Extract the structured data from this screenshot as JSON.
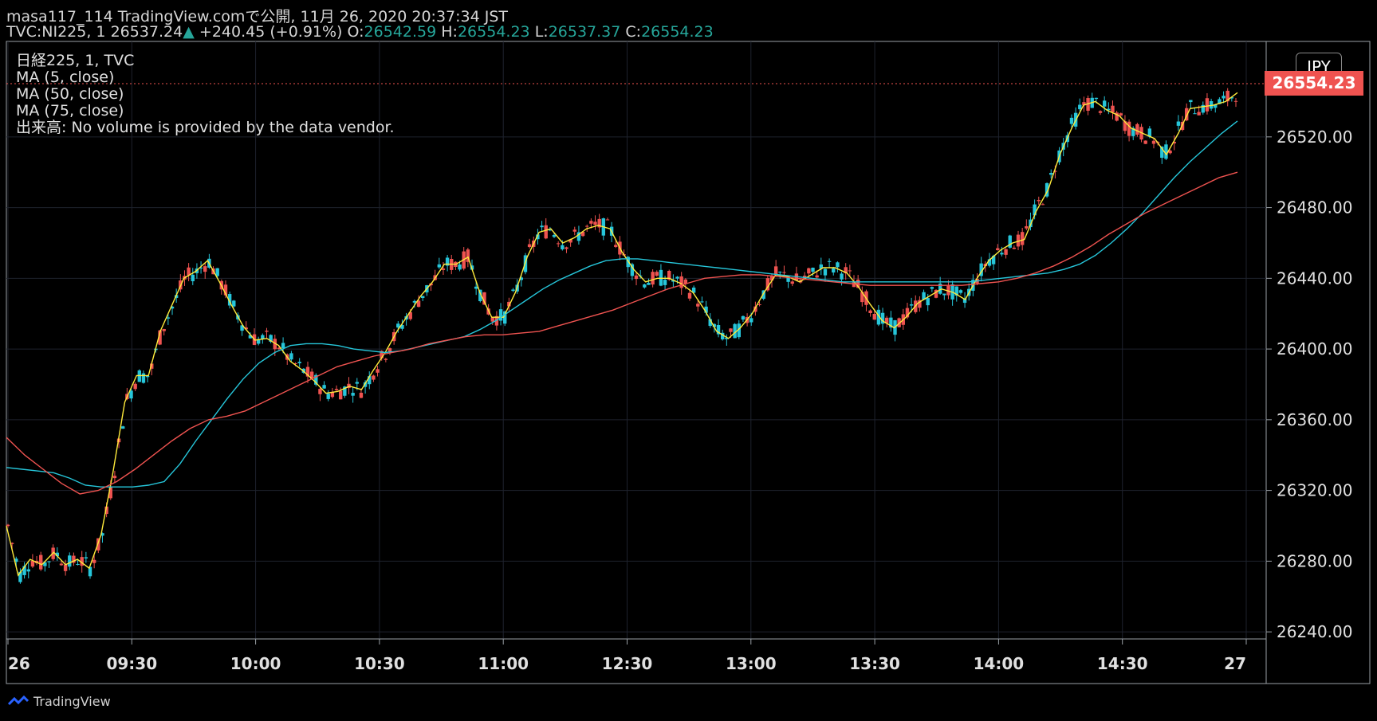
{
  "header": {
    "line1": "masa117_114 TradingView.comで公開, 11月 26, 2020 20:37:34 JST",
    "symbol": "TVC:NI225, 1",
    "last": "26537.24",
    "change": "+240.45 (+0.91%)",
    "o_label": "O:",
    "o_val": "26542.59",
    "h_label": "H:",
    "h_val": "26554.23",
    "l_label": "L:",
    "l_val": "26537.37",
    "c_label": "C:",
    "c_val": "26554.23"
  },
  "legend": {
    "title": "日経225, 1, TVC",
    "ma5": "MA (5, close)",
    "ma50": "MA (50, close)",
    "ma75": "MA (75, close)",
    "volume_note": "出来高: No volume is provided by the data vendor."
  },
  "currency": "JPY",
  "last_price_tag": "26554.23",
  "footer": {
    "brand": "TradingView"
  },
  "colors": {
    "up": "#ef5350",
    "down": "#26c6da",
    "ma5": "#ffeb3b",
    "ma50": "#26c6da",
    "ma75": "#ef5350",
    "grid": "#1e222d"
  },
  "chart_data": {
    "type": "line",
    "y_ticks": [
      "26240.00",
      "26280.00",
      "26320.00",
      "26360.00",
      "26400.00",
      "26440.00",
      "26480.00",
      "26520.00"
    ],
    "x_ticks": [
      "26",
      "09:30",
      "10:00",
      "10:30",
      "11:00",
      "12:30",
      "13:00",
      "13:30",
      "14:00",
      "14:30",
      "27"
    ],
    "ylim": [
      26236,
      26574
    ],
    "series": [
      {
        "name": "MA (5, close)",
        "color": "#ffeb3b",
        "values": [
          26300,
          26272,
          26281,
          26278,
          26285,
          26278,
          26281,
          26276,
          26295,
          26330,
          26370,
          26385,
          26385,
          26410,
          26425,
          26440,
          26444,
          26450,
          26438,
          26425,
          26413,
          26405,
          26406,
          26402,
          26393,
          26388,
          26382,
          26375,
          26376,
          26379,
          26377,
          26388,
          26398,
          26410,
          26420,
          26430,
          26438,
          26448,
          26448,
          26452,
          26432,
          26418,
          26418,
          26432,
          26452,
          26466,
          26468,
          26460,
          26463,
          26468,
          26470,
          26468,
          26455,
          26445,
          26438,
          26440,
          26440,
          26437,
          26432,
          26422,
          26410,
          26406,
          26412,
          26420,
          26432,
          26442,
          26441,
          26438,
          26442,
          26446,
          26446,
          26443,
          26435,
          26425,
          26416,
          26412,
          26418,
          26426,
          26430,
          26434,
          26432,
          26428,
          26440,
          26450,
          26456,
          26460,
          26462,
          26478,
          26490,
          26510,
          26525,
          26538,
          26540,
          26535,
          26532,
          26525,
          26522,
          26519,
          26510,
          26522,
          26536,
          26537,
          26538,
          26540,
          26545
        ]
      },
      {
        "name": "MA (50, close)",
        "color": "#26c6da",
        "values": [
          26333,
          26332,
          26331,
          26330,
          26327,
          26323,
          26322,
          26322,
          26322,
          26323,
          26325,
          26335,
          26348,
          26360,
          26372,
          26383,
          26392,
          26398,
          26402,
          26403,
          26403,
          26402,
          26400,
          26399,
          26398,
          26399,
          26401,
          26403,
          26405,
          26407,
          26411,
          26416,
          26422,
          26428,
          26434,
          26439,
          26443,
          26447,
          26450,
          26451,
          26451,
          26450,
          26449,
          26448,
          26447,
          26446,
          26445,
          26444,
          26443,
          26442,
          26441,
          26440,
          26439,
          26438,
          26438,
          26438,
          26438,
          26438,
          26438,
          26438,
          26438,
          26438,
          26439,
          26440,
          26441,
          26442,
          26443,
          26445,
          26448,
          26453,
          26460,
          26468,
          26477,
          26487,
          26497,
          26506,
          26514,
          26522,
          26529
        ]
      },
      {
        "name": "MA (75, close)",
        "color": "#ef5350",
        "values": [
          26350,
          26340,
          26332,
          26324,
          26318,
          26320,
          26325,
          26332,
          26340,
          26348,
          26355,
          26360,
          26362,
          26365,
          26370,
          26375,
          26380,
          26385,
          26390,
          26393,
          26396,
          26398,
          26400,
          26403,
          26405,
          26407,
          26408,
          26408,
          26409,
          26410,
          26413,
          26416,
          26419,
          26422,
          26426,
          26430,
          26434,
          26437,
          26440,
          26441,
          26442,
          26442,
          26441,
          26440,
          26439,
          26438,
          26437,
          26436,
          26436,
          26436,
          26436,
          26436,
          26436,
          26437,
          26438,
          26440,
          26443,
          26447,
          26452,
          26458,
          26465,
          26471,
          26477,
          26482,
          26487,
          26492,
          26497,
          26500
        ]
      }
    ]
  }
}
